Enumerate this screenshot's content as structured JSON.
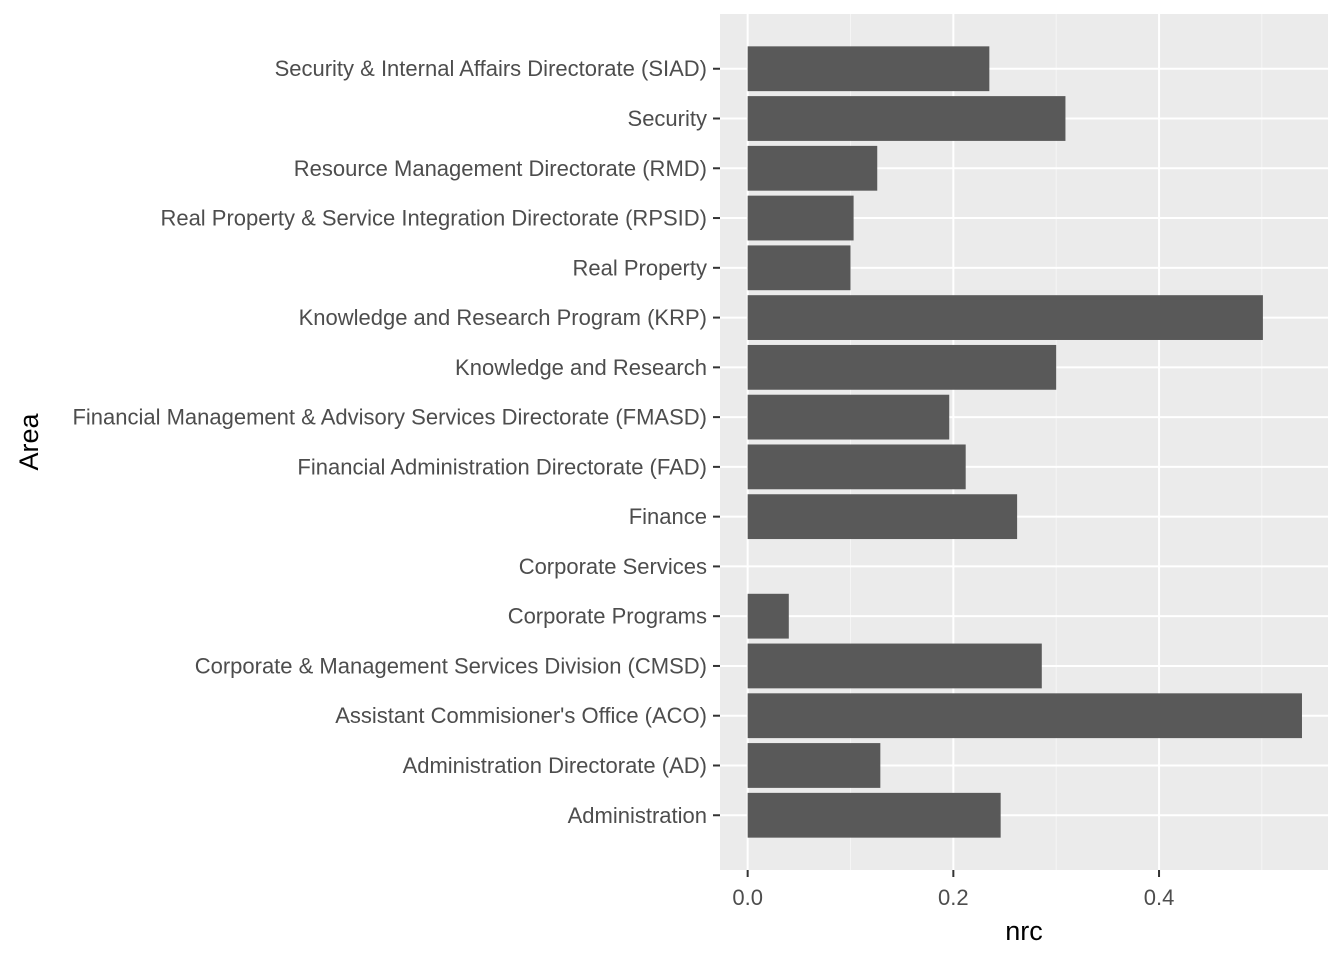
{
  "chart_data": {
    "type": "bar",
    "orientation": "horizontal",
    "xlabel": "nrc",
    "ylabel": "Area",
    "xlim": [
      -0.0269,
      0.5643
    ],
    "xticks": [
      0.0,
      0.2,
      0.4
    ],
    "xtick_labels": [
      "0.0",
      "0.2",
      "0.4"
    ],
    "grid": true,
    "colors": {
      "bar": "#595959",
      "panel": "#ebebeb",
      "grid_major": "#ffffff",
      "grid_minor": "#f5f5f5",
      "tick_text": "#4d4d4d"
    },
    "categories": [
      "Security & Internal Affairs Directorate (SIAD)",
      "Security",
      "Resource Management Directorate (RMD)",
      "Real Property & Service Integration Directorate (RPSID)",
      "Real Property",
      "Knowledge and Research Program (KRP)",
      "Knowledge and Research",
      "Financial Management & Advisory Services Directorate (FMASD)",
      "Financial Administration Directorate (FAD)",
      "Finance",
      "Corporate Services",
      "Corporate Programs",
      "Corporate & Management Services Division (CMSD)",
      "Assistant Commisioner's Office (ACO)",
      "Administration Directorate (AD)",
      "Administration"
    ],
    "values": [
      0.235,
      0.309,
      0.126,
      0.103,
      0.1,
      0.501,
      0.3,
      0.196,
      0.212,
      0.262,
      0,
      0.04,
      0.286,
      0.539,
      0.129,
      0.246
    ]
  }
}
